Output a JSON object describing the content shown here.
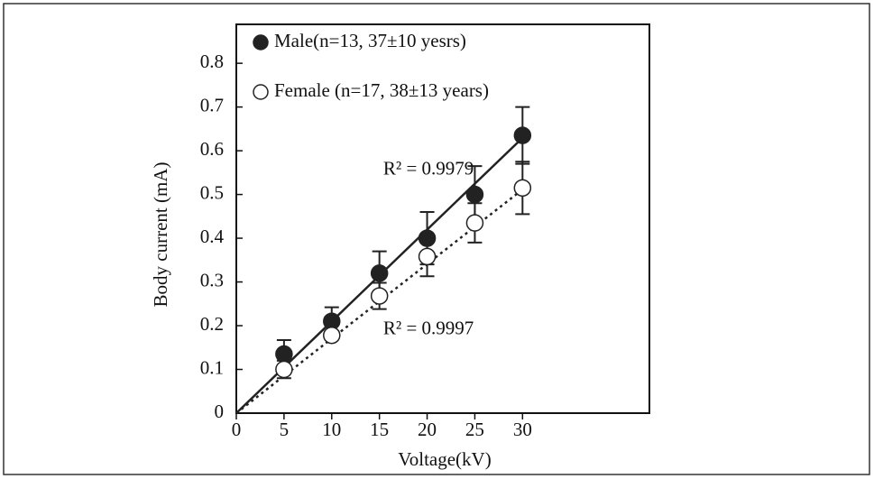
{
  "chart_data": {
    "type": "scatter",
    "xlabel": "Voltage(kV)",
    "ylabel": "Body current (mA)",
    "xlim": [
      0,
      43.3
    ],
    "ylim": [
      0,
      0.889
    ],
    "xticks": [
      0,
      5,
      10,
      15,
      20,
      25,
      30
    ],
    "yticks": [
      0,
      0.1,
      0.2,
      0.3,
      0.4,
      0.5,
      0.6,
      0.7,
      0.8
    ],
    "legend": "upper left",
    "series": [
      {
        "name": "Male(n=13, 37±10 yesrs)",
        "color": "#222222",
        "fill": "#222222",
        "line": "solid",
        "x": [
          5,
          10,
          15,
          20,
          25,
          30
        ],
        "values": [
          0.135,
          0.21,
          0.32,
          0.4,
          0.5,
          0.635
        ],
        "errors": [
          0.032,
          0.032,
          0.05,
          0.06,
          0.065,
          0.065
        ],
        "fit": {
          "x": [
            0,
            30.5
          ],
          "values": [
            0,
            0.64
          ]
        }
      },
      {
        "name": "Female (n=17, 38±13 years)",
        "color": "#222222",
        "fill": "#ffffff",
        "line": "dotted",
        "x": [
          5,
          10,
          15,
          20,
          25,
          30
        ],
        "values": [
          0.1,
          0.178,
          0.268,
          0.358,
          0.435,
          0.515
        ],
        "errors": [
          0.02,
          0.01,
          0.03,
          0.045,
          0.045,
          0.06
        ],
        "fit": {
          "x": [
            0,
            30.5
          ],
          "values": [
            0,
            0.52
          ]
        }
      }
    ],
    "annotations": [
      {
        "text": "R² = 0.9979",
        "x": 15.4,
        "y": 0.555
      },
      {
        "text": "R² = 0.9997",
        "x": 15.4,
        "y": 0.19
      }
    ]
  }
}
